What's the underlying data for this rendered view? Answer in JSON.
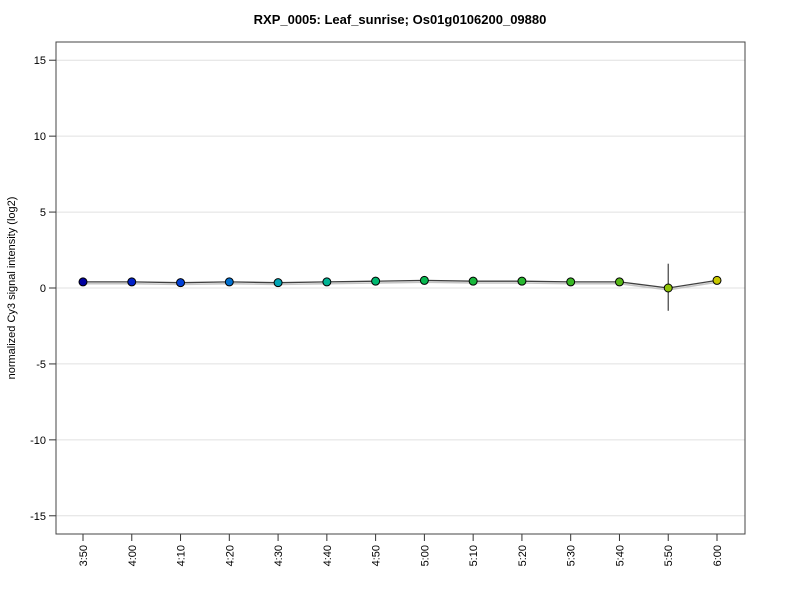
{
  "window": {
    "background": "#ffffff"
  },
  "chart_data": {
    "type": "line",
    "title": "RXP_0005: Leaf_sunrise; Os01g0106200_09880",
    "xlabel": "",
    "ylabel": "normalized Cy3 signal intensity (log2)",
    "categories": [
      "3:50",
      "4:00",
      "4:10",
      "4:20",
      "4:30",
      "4:40",
      "4:50",
      "5:00",
      "5:10",
      "5:20",
      "5:30",
      "5:40",
      "5:50",
      "6:00"
    ],
    "y_ticks": [
      15,
      10,
      5,
      0,
      -5,
      -10,
      -15
    ],
    "ylim": [
      -16.2,
      16.2
    ],
    "grid": true,
    "legend_position": "none",
    "series": [
      {
        "name": "normalized Cy3 signal intensity",
        "values": [
          0.4,
          0.4,
          0.35,
          0.4,
          0.35,
          0.4,
          0.45,
          0.5,
          0.45,
          0.45,
          0.4,
          0.4,
          0.0,
          0.5
        ],
        "point_colors": [
          "#0000a0",
          "#0020c8",
          "#0040d8",
          "#0070d0",
          "#00a4b4",
          "#00b494",
          "#00b870",
          "#08b850",
          "#18b83c",
          "#28b830",
          "#38b824",
          "#58b818",
          "#90c408",
          "#c8c800"
        ],
        "error_bars": [
          {
            "index": 12,
            "plus": 1.6,
            "minus": 1.5
          }
        ]
      }
    ],
    "style": {
      "line_color": "#404040",
      "line_shadow_color": "#c6c6c6",
      "gridline_color": "#e0e0e0",
      "box_color": "#444444",
      "tick_color": "#333333",
      "label_color": "#000000",
      "point_stroke": "#000000"
    }
  }
}
